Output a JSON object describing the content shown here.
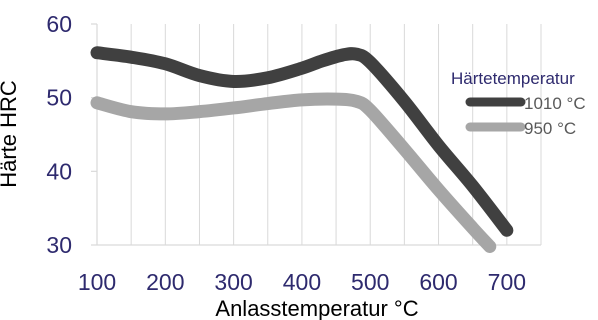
{
  "chart_data": {
    "type": "line",
    "title": "",
    "xlabel": "Anlasstemperatur °C",
    "ylabel": "Härte HRC",
    "xlim": [
      100,
      750
    ],
    "ylim": [
      30,
      60
    ],
    "xticks": [
      100,
      200,
      300,
      400,
      500,
      600,
      700
    ],
    "yticks": [
      30,
      40,
      50,
      60
    ],
    "grid": "vertical",
    "legend": {
      "title": "Härtetemperatur",
      "position": "right"
    },
    "colors": {
      "axis_text": "#2e2a6e",
      "grid": "#d9d9d9",
      "legend_text": "#595959"
    },
    "series": [
      {
        "name": "1010 °C",
        "color": "#404040",
        "points": [
          [
            100,
            56.1
          ],
          [
            150,
            55.5
          ],
          [
            200,
            54.6
          ],
          [
            250,
            53.0
          ],
          [
            300,
            52.2
          ],
          [
            350,
            52.7
          ],
          [
            400,
            54.0
          ],
          [
            430,
            55.0
          ],
          [
            460,
            55.8
          ],
          [
            480,
            55.9
          ],
          [
            500,
            54.8
          ],
          [
            550,
            49.5
          ],
          [
            600,
            43.5
          ],
          [
            650,
            38.0
          ],
          [
            700,
            32.0
          ]
        ]
      },
      {
        "name": "950 °C",
        "color": "#a6a6a6",
        "points": [
          [
            100,
            49.3
          ],
          [
            150,
            48.1
          ],
          [
            200,
            47.8
          ],
          [
            250,
            48.1
          ],
          [
            300,
            48.6
          ],
          [
            350,
            49.2
          ],
          [
            400,
            49.7
          ],
          [
            450,
            49.8
          ],
          [
            480,
            49.5
          ],
          [
            500,
            48.3
          ],
          [
            550,
            43.0
          ],
          [
            600,
            37.5
          ],
          [
            650,
            32.3
          ],
          [
            675,
            29.8
          ]
        ]
      }
    ]
  }
}
